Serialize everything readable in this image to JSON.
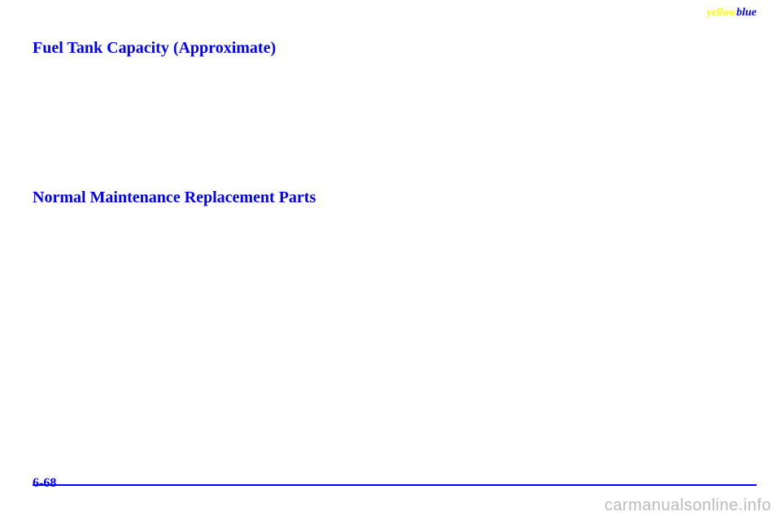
{
  "brand": {
    "part1": "yellow",
    "part2": "blue"
  },
  "headings": {
    "fuel_tank": "Fuel Tank Capacity (Approximate)",
    "maintenance": "Normal Maintenance Replacement Parts"
  },
  "footer": {
    "page_number": "6-68"
  },
  "watermark": "carmanualsonline.info"
}
